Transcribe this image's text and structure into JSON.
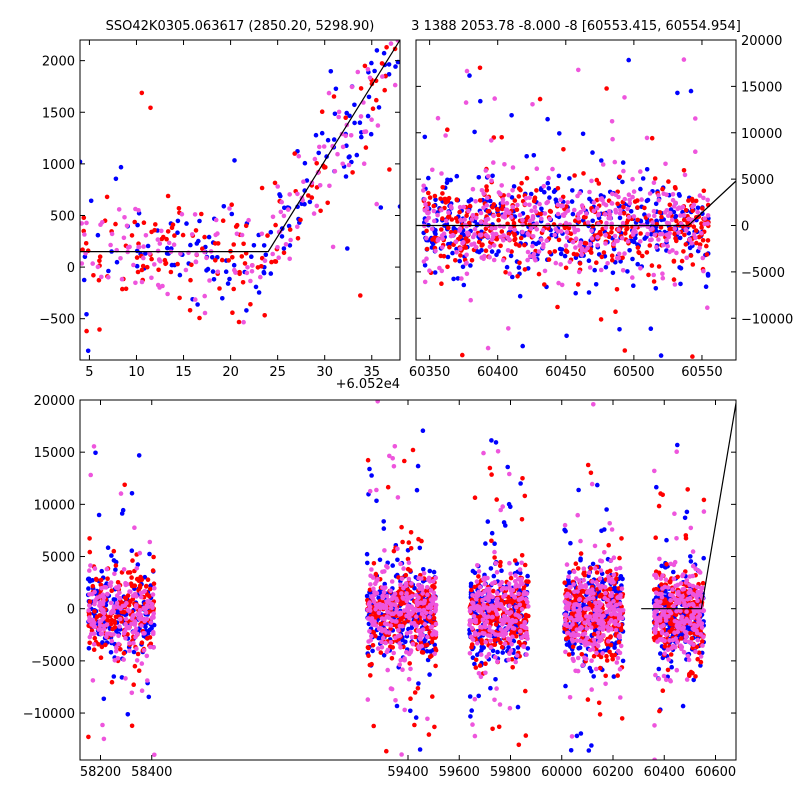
{
  "colors": {
    "red": "#ff0000",
    "blue": "#0000ff",
    "pink": "#ee55dd",
    "model": "#000000"
  },
  "panels": {
    "top_left": {
      "title": "SSO42K0305.063617 (2850.20, 5298.90)",
      "offset_label": "+6.052e4"
    },
    "top_right": {
      "title": "3 1388 2053.78 -8.000 -8 [60553.415, 60554.954]"
    }
  },
  "chart_data": [
    {
      "id": "top_left",
      "type": "scatter",
      "title": "SSO42K0305.063617 (2850.20, 5298.90)",
      "xlim": [
        4,
        38
      ],
      "ylim": [
        -900,
        2200
      ],
      "x_offset": 60520,
      "x_offset_label": "+6.052e4",
      "x_ticks": [
        5,
        10,
        15,
        20,
        25,
        30,
        35
      ],
      "y_ticks": [
        -500,
        0,
        500,
        1000,
        1500,
        2000
      ],
      "y_axis_side": "left",
      "model_line": {
        "x": [
          4,
          24,
          38
        ],
        "y": [
          150,
          150,
          2200
        ]
      },
      "scatter_clusters": [
        {
          "x_range": [
            4,
            38
          ],
          "y_base": 150,
          "spread": 400,
          "trend_start": 24,
          "trend_slope": 146,
          "n_per_color": 150
        }
      ]
    },
    {
      "id": "top_right",
      "type": "scatter",
      "title": "3 1388 2053.78 -8.000 -8 [60553.415, 60554.954]",
      "xlim": [
        60340,
        60575
      ],
      "ylim": [
        -14500,
        20000
      ],
      "x_ticks": [
        60350,
        60400,
        60450,
        60500,
        60550
      ],
      "y_ticks": [
        -10000,
        -5000,
        0,
        5000,
        10000,
        15000,
        20000
      ],
      "y_axis_side": "right",
      "model_line": {
        "x": [
          60340,
          60540,
          60575
        ],
        "y": [
          0,
          0,
          4800
        ]
      },
      "scatter_clusters": [
        {
          "x_range": [
            60345,
            60555
          ],
          "y_base": 0,
          "spread": 4500,
          "n_per_color": 420
        }
      ]
    },
    {
      "id": "bottom",
      "type": "scatter",
      "title": "",
      "xlim": [
        58120,
        60680
      ],
      "ylim": [
        -14500,
        20000
      ],
      "x_ticks": [
        58200,
        58400,
        59400,
        59600,
        59800,
        60000,
        60200,
        60400,
        60600
      ],
      "y_ticks": [
        -10000,
        -5000,
        0,
        5000,
        10000,
        15000,
        20000
      ],
      "y_axis_side": "left",
      "model_line": {
        "x": [
          60310,
          60545,
          60680
        ],
        "y": [
          0,
          0,
          19700
        ]
      },
      "scatter_clusters": [
        {
          "x_range": [
            58150,
            58410
          ],
          "y_base": -400,
          "spread": 3800,
          "n_per_color": 190
        },
        {
          "x_range": [
            59240,
            59510
          ],
          "y_base": -400,
          "spread": 3800,
          "n_per_color": 260
        },
        {
          "x_range": [
            59640,
            59870
          ],
          "y_base": -400,
          "spread": 3800,
          "n_per_color": 240
        },
        {
          "x_range": [
            60010,
            60240
          ],
          "y_base": -400,
          "spread": 3800,
          "n_per_color": 260
        },
        {
          "x_range": [
            60360,
            60555
          ],
          "y_base": -400,
          "spread": 3800,
          "n_per_color": 230
        }
      ]
    }
  ]
}
